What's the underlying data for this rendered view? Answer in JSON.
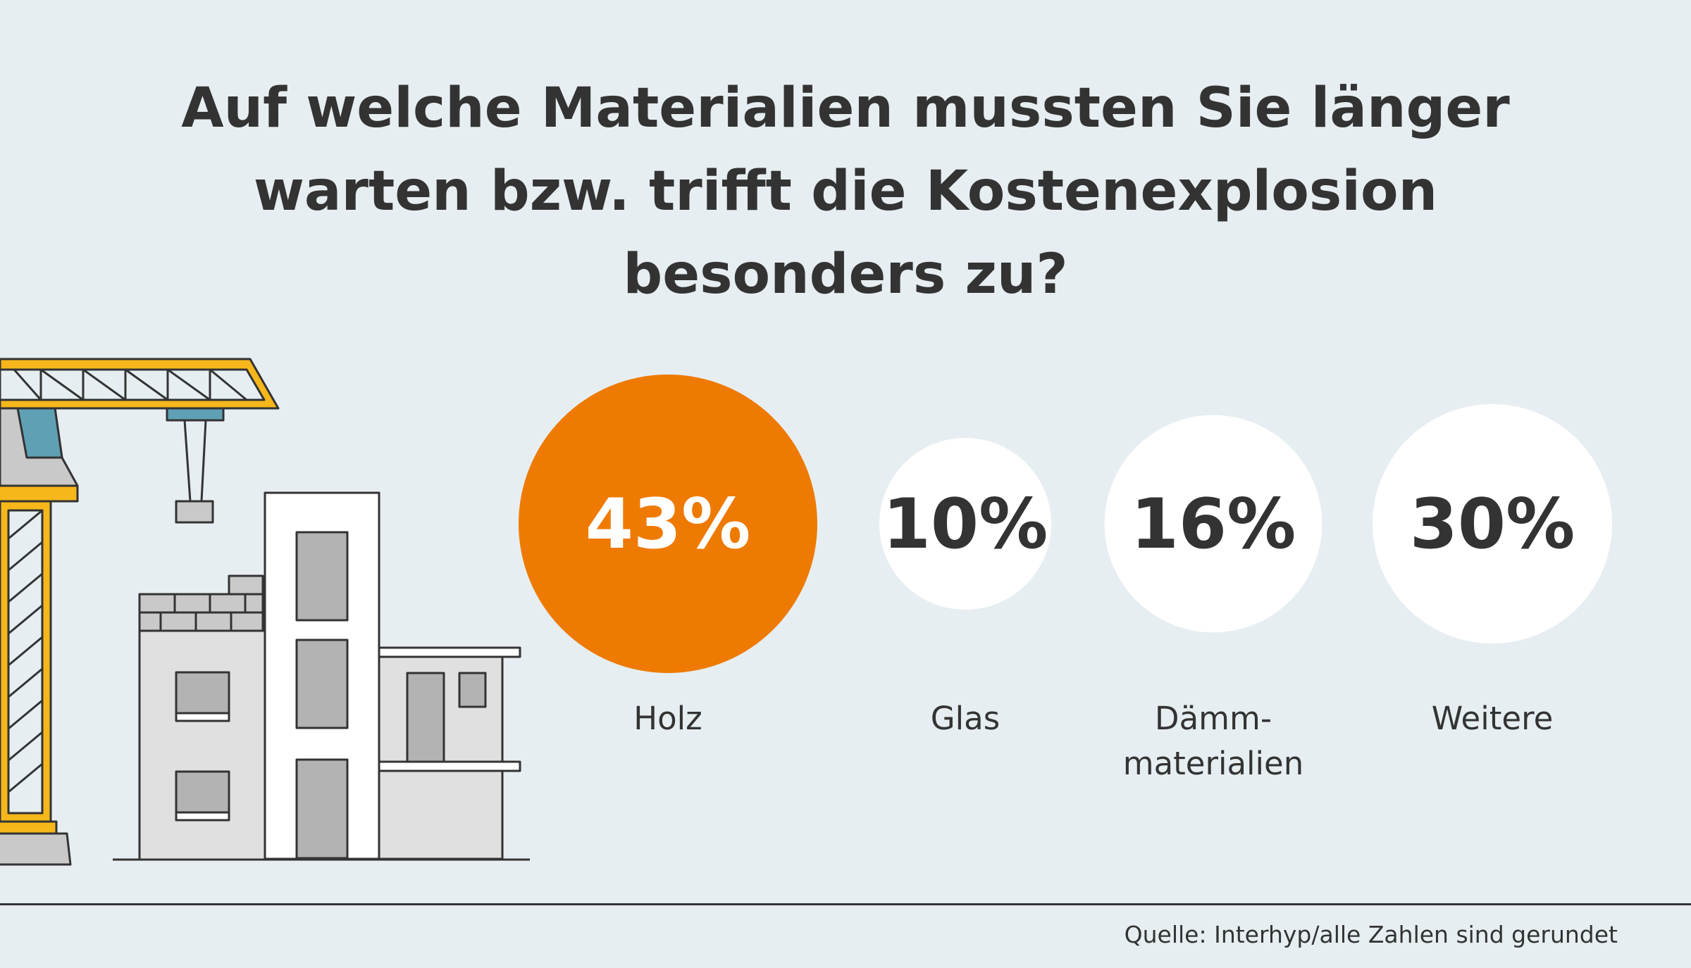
{
  "title": {
    "line1": "Auf welche Materialien mussten Sie länger",
    "line2": "warten bzw. trifft die Kostenexplosion",
    "line3": "besonders zu?"
  },
  "chart_data": {
    "type": "bubble",
    "title": "Auf welche Materialien mussten Sie länger warten bzw. trifft die Kostenexplosion besonders zu?",
    "unit": "%",
    "categories": [
      {
        "label": [
          "Holz"
        ],
        "value": 43,
        "value_label": "43%",
        "color": "#ee7a02",
        "text_color": "#ffffff",
        "highlight": true
      },
      {
        "label": [
          "Glas"
        ],
        "value": 10,
        "value_label": "10%",
        "color": "#ffffff",
        "text_color": "#333333",
        "highlight": false
      },
      {
        "label": [
          "Dämm-",
          "materialien"
        ],
        "value": 16,
        "value_label": "16%",
        "color": "#ffffff",
        "text_color": "#333333",
        "highlight": false
      },
      {
        "label": [
          "Weitere"
        ],
        "value": 30,
        "value_label": "30%",
        "color": "#ffffff",
        "text_color": "#333333",
        "highlight": false
      }
    ]
  },
  "source": "Quelle: Interhyp/alle Zahlen sind gerundet",
  "colors": {
    "background": "#e6eef1",
    "accent": "#ee7a02",
    "text": "#333333",
    "crane": "#f6b71b",
    "building": "#e0e0e0"
  },
  "icons": [
    "construction-crane-icon",
    "building-under-construction-icon"
  ]
}
